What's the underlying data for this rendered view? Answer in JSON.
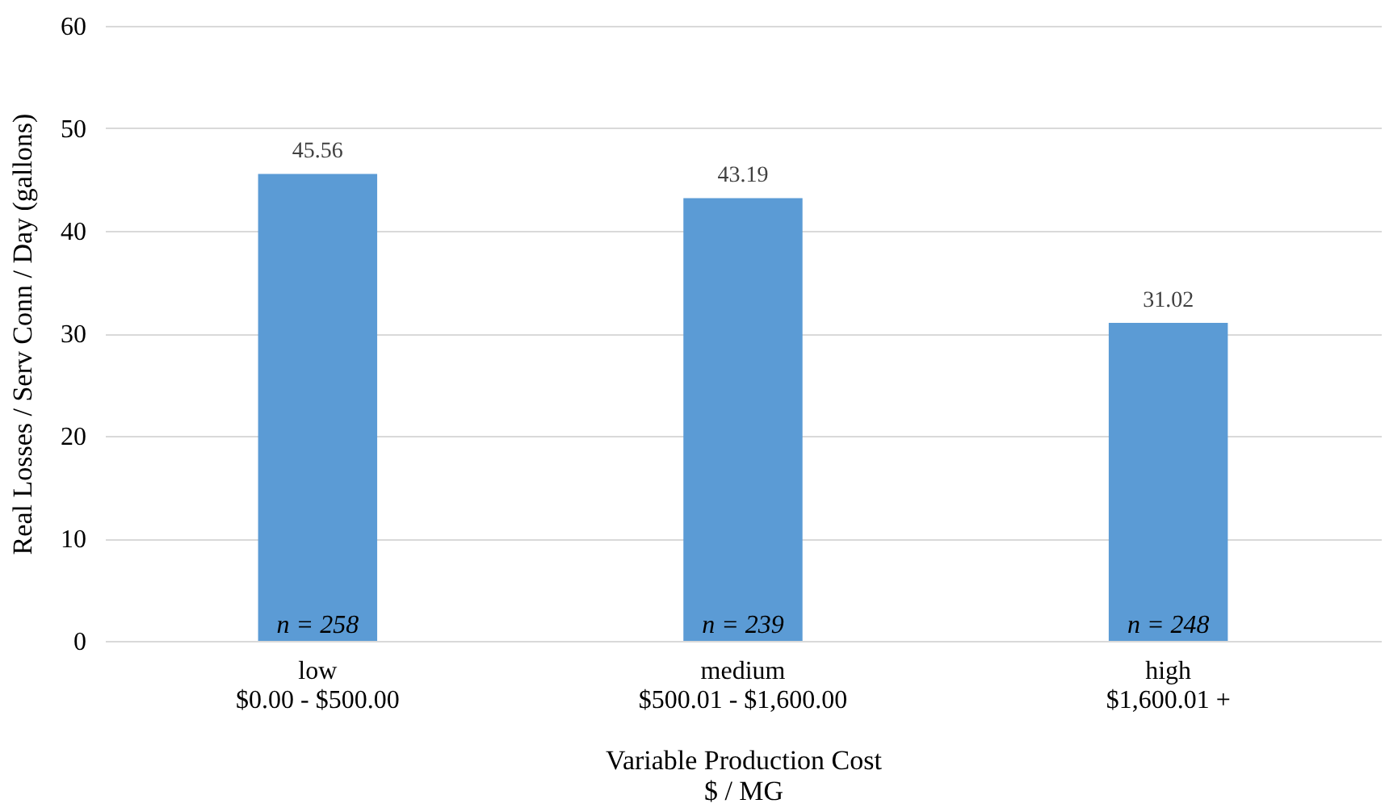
{
  "chart_data": {
    "type": "bar",
    "categories": [
      "low\n$0.00 - $500.00",
      "medium\n$500.01 - $1,600.00",
      "high\n$1,600.01 +"
    ],
    "values": [
      45.56,
      43.19,
      31.02
    ],
    "color": "#5b9bd5",
    "xlabel": "Variable Production Cost\n$ / MG",
    "ylabel": "Real Losses / Serv Conn / Day     (gallons)",
    "ylim": [
      0,
      60
    ],
    "yticks": [
      0,
      10,
      20,
      30,
      40,
      50,
      60
    ],
    "grid": "y",
    "data_labels": true,
    "annotations": [
      {
        "text": "n = 258",
        "x": "low\n$0.00 - $500.00",
        "y": 0
      },
      {
        "text": "n = 239",
        "x": "medium\n$500.01 - $1,600.00",
        "y": 0
      },
      {
        "text": "n = 248",
        "x": "high\n$1,600.01 +",
        "y": 0
      }
    ]
  }
}
